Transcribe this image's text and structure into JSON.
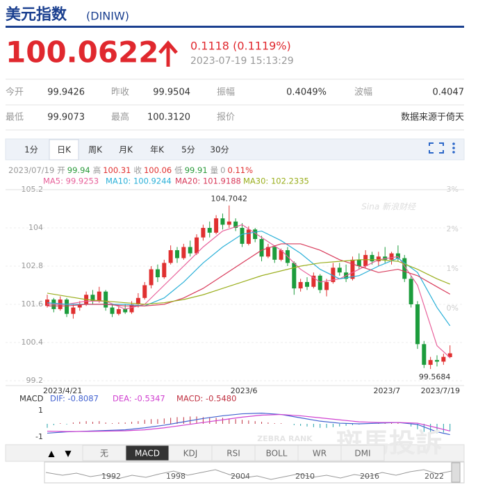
{
  "header": {
    "title": "美元指数",
    "code": "(DINIW)",
    "price": "100.0622",
    "change": "0.1118 (0.1119%)",
    "time": "2023-07-19 15:13:29"
  },
  "table": {
    "rows": [
      [
        "今开",
        "99.9426",
        "昨收",
        "99.9504",
        "振幅",
        "0.4049%",
        "波幅",
        "0.4047"
      ],
      [
        "最低",
        "99.9073",
        "最高",
        "100.3120",
        "报价",
        "",
        "",
        "数据来源于倚天"
      ]
    ]
  },
  "tabs": {
    "items": [
      "1分",
      "日K",
      "周K",
      "月K",
      "年K",
      "5分",
      "30分"
    ],
    "active": 1
  },
  "info": [
    {
      "label": "2023/07/19",
      "value": null,
      "color": "#999"
    },
    {
      "label": "开",
      "value": "99.94",
      "color": "#2a9a3a"
    },
    {
      "label": "高",
      "value": "100.31",
      "color": "#e03030"
    },
    {
      "label": "收",
      "value": "100.06",
      "color": "#e03030"
    },
    {
      "label": "低",
      "value": "99.91",
      "color": "#2a9a3a"
    },
    {
      "label": "量",
      "value": "0",
      "color": "#999"
    },
    {
      "label": null,
      "value": "0.11%",
      "color": "#e03030"
    }
  ],
  "chart": {
    "type": "candlestick",
    "ylim": [
      99.2,
      105.2
    ],
    "yticks": [
      {
        "value": 105.2,
        "label": "105.2"
      },
      104,
      {
        "value": 102.8,
        "label": "102.8"
      },
      {
        "value": 101.6,
        "label": "101.6"
      },
      {
        "value": 100.4,
        "label": "100.4"
      },
      {
        "value": 99.2,
        "label": "99.2"
      }
    ],
    "y2lim": [
      -1.82,
      3
    ],
    "y2ticks": [
      {
        "value": 3,
        "label": "3%"
      },
      {
        "value": 2,
        "label": "2%"
      },
      {
        "value": 1,
        "label": "1%"
      },
      {
        "value": 0,
        "label": "0%"
      }
    ],
    "up_color": "#e03030",
    "down_color": "#1c9c3c",
    "watermark": "Sina 新浪财经",
    "xlabels": [
      {
        "index": 0,
        "label": "2023/4/21"
      },
      {
        "index": 29,
        "label": "2023/6"
      },
      {
        "index": 51,
        "label": "2023/7"
      },
      {
        "index": 62,
        "label": "2023/7/19"
      }
    ],
    "high_index": 28,
    "low_index": 59,
    "candles": [
      [
        101.55,
        101.9,
        101.5,
        101.75
      ],
      [
        101.75,
        101.8,
        101.35,
        101.45
      ],
      [
        101.45,
        101.85,
        101.4,
        101.75
      ],
      [
        101.75,
        101.8,
        101.2,
        101.3
      ],
      [
        101.3,
        101.6,
        101.15,
        101.5
      ],
      [
        101.5,
        101.7,
        101.4,
        101.6
      ],
      [
        101.6,
        102.0,
        101.55,
        101.9
      ],
      [
        101.9,
        102.05,
        101.6,
        101.7
      ],
      [
        101.7,
        102.15,
        101.65,
        102.0
      ],
      [
        102.0,
        102.05,
        101.4,
        101.5
      ],
      [
        101.5,
        101.6,
        101.2,
        101.3
      ],
      [
        101.3,
        101.55,
        101.25,
        101.45
      ],
      [
        101.45,
        101.6,
        101.3,
        101.35
      ],
      [
        101.35,
        101.7,
        101.3,
        101.6
      ],
      [
        101.6,
        101.95,
        101.5,
        101.8
      ],
      [
        101.8,
        102.3,
        101.75,
        102.2
      ],
      [
        102.2,
        102.8,
        102.1,
        102.7
      ],
      [
        102.7,
        102.85,
        102.3,
        102.45
      ],
      [
        102.45,
        103.0,
        102.4,
        102.9
      ],
      [
        102.9,
        103.45,
        102.85,
        103.3
      ],
      [
        103.3,
        103.4,
        102.9,
        103.05
      ],
      [
        103.05,
        103.5,
        103.0,
        103.4
      ],
      [
        103.4,
        103.6,
        103.1,
        103.2
      ],
      [
        103.2,
        103.8,
        103.15,
        103.7
      ],
      [
        103.7,
        104.1,
        103.6,
        104.0
      ],
      [
        104.0,
        104.2,
        103.7,
        103.85
      ],
      [
        103.85,
        104.4,
        103.8,
        104.3
      ],
      [
        104.3,
        104.45,
        103.95,
        104.1
      ],
      [
        104.1,
        104.7042,
        104.0,
        104.2
      ],
      [
        104.2,
        104.3,
        103.9,
        104.0
      ],
      [
        104.0,
        104.15,
        103.4,
        103.5
      ],
      [
        103.5,
        104.05,
        103.45,
        103.95
      ],
      [
        103.95,
        104.0,
        103.55,
        103.65
      ],
      [
        103.65,
        103.75,
        102.95,
        103.1
      ],
      [
        103.1,
        103.5,
        103.05,
        103.4
      ],
      [
        103.4,
        103.45,
        102.9,
        103.0
      ],
      [
        103.0,
        103.35,
        102.95,
        103.3
      ],
      [
        103.3,
        103.4,
        102.8,
        102.9
      ],
      [
        102.9,
        102.95,
        101.9,
        102.1
      ],
      [
        102.1,
        102.4,
        102.0,
        102.3
      ],
      [
        102.3,
        102.45,
        102.05,
        102.15
      ],
      [
        102.15,
        102.6,
        102.1,
        102.5
      ],
      [
        102.5,
        102.55,
        101.95,
        102.05
      ],
      [
        102.05,
        102.4,
        101.85,
        102.3
      ],
      [
        102.3,
        102.9,
        102.25,
        102.75
      ],
      [
        102.75,
        102.9,
        102.5,
        102.6
      ],
      [
        102.6,
        102.85,
        102.3,
        102.4
      ],
      [
        102.4,
        103.1,
        102.35,
        103.0
      ],
      [
        103.0,
        103.2,
        102.7,
        102.8
      ],
      [
        102.8,
        103.3,
        102.75,
        103.15
      ],
      [
        103.15,
        103.25,
        102.85,
        102.95
      ],
      [
        102.95,
        103.25,
        102.8,
        103.1
      ],
      [
        103.1,
        103.4,
        102.9,
        103.0
      ],
      [
        103.0,
        103.25,
        102.85,
        103.2
      ],
      [
        103.2,
        103.45,
        102.95,
        103.05
      ],
      [
        103.05,
        103.15,
        102.3,
        102.4
      ],
      [
        102.4,
        102.5,
        101.5,
        101.6
      ],
      [
        101.6,
        101.7,
        100.2,
        100.35
      ],
      [
        100.35,
        100.45,
        99.6,
        99.7
      ],
      [
        99.7,
        99.95,
        99.5684,
        99.85
      ],
      [
        99.85,
        100.0,
        99.65,
        99.8
      ],
      [
        99.8,
        100.05,
        99.7,
        99.95
      ],
      [
        99.9426,
        100.312,
        99.9073,
        100.0622
      ]
    ],
    "ma_x": [
      0,
      3,
      6,
      9,
      12,
      15,
      18,
      21,
      24,
      27,
      30,
      33,
      36,
      39,
      42,
      45,
      48,
      51,
      54,
      57,
      60,
      62
    ],
    "series": [
      {
        "name": "MA5",
        "label": "MA5: 99.9253",
        "color": "#e8609a",
        "values": [
          101.6,
          101.6,
          101.7,
          101.7,
          101.45,
          101.6,
          102.2,
          102.8,
          103.4,
          103.9,
          104.1,
          103.7,
          103.3,
          102.7,
          102.3,
          102.4,
          102.7,
          103.0,
          103.1,
          102.2,
          100.3,
          99.9253
        ]
      },
      {
        "name": "MA10",
        "label": "MA10: 100.9244",
        "color": "#2ab0d8",
        "values": [
          101.65,
          101.6,
          101.6,
          101.6,
          101.6,
          101.55,
          101.8,
          102.3,
          102.9,
          103.4,
          103.8,
          103.9,
          103.6,
          103.2,
          102.7,
          102.4,
          102.5,
          102.8,
          103.05,
          102.6,
          101.5,
          100.9244
        ]
      },
      {
        "name": "MA20",
        "label": "MA20: 101.9188",
        "color": "#d83a5a",
        "values": [
          101.55,
          101.55,
          101.6,
          101.6,
          101.55,
          101.55,
          101.6,
          101.8,
          102.1,
          102.5,
          102.9,
          103.3,
          103.5,
          103.5,
          103.3,
          103.0,
          102.8,
          102.6,
          102.7,
          102.5,
          102.15,
          101.9188
        ]
      },
      {
        "name": "MA30",
        "label": "MA30: 102.2335",
        "color": "#9aae1c",
        "values": [
          101.95,
          101.85,
          101.75,
          101.7,
          101.65,
          101.6,
          101.65,
          101.75,
          101.9,
          102.1,
          102.3,
          102.5,
          102.65,
          102.8,
          102.9,
          102.95,
          103.0,
          103.0,
          102.95,
          102.7,
          102.4,
          102.2335
        ]
      }
    ]
  },
  "macd": {
    "title": "MACD",
    "ylim": [
      -1.56,
      1.56
    ],
    "yticks": [
      1,
      -1
    ],
    "hist": [
      -0.3,
      -0.1,
      0.05,
      -0.05,
      0.1,
      0.15,
      0.2,
      0.15,
      0.2,
      0.1,
      0.05,
      0.1,
      0.1,
      0.15,
      0.2,
      0.3,
      0.35,
      0.35,
      0.4,
      0.45,
      0.5,
      0.5,
      0.55,
      0.55,
      0.5,
      0.5,
      0.45,
      0.45,
      0.4,
      0.35,
      0.3,
      0.25,
      0.2,
      0.15,
      0.1,
      0.05,
      0.05,
      0.0,
      -0.1,
      -0.15,
      -0.2,
      -0.25,
      -0.3,
      -0.3,
      -0.25,
      -0.2,
      -0.15,
      -0.1,
      -0.05,
      0.0,
      0.05,
      0.05,
      0.05,
      0.1,
      0.1,
      0.0,
      -0.2,
      -0.4,
      -0.6,
      -0.7,
      -0.7,
      -0.65,
      -0.548
    ],
    "series": [
      {
        "name": "DIF",
        "label": "DIF: -0.8087",
        "color": "#4060d0",
        "values": [
          -0.7,
          -0.6,
          -0.55,
          -0.5,
          -0.45,
          -0.3,
          -0.1,
          0.15,
          0.4,
          0.6,
          0.75,
          0.8,
          0.7,
          0.45,
          0.2,
          0.05,
          0.0,
          0.05,
          0.1,
          -0.05,
          -0.6,
          -0.8087
        ]
      },
      {
        "name": "DEA",
        "label": "DEA: -0.5347",
        "color": "#d040d0",
        "values": [
          -0.55,
          -0.58,
          -0.57,
          -0.55,
          -0.52,
          -0.45,
          -0.3,
          -0.1,
          0.1,
          0.3,
          0.5,
          0.65,
          0.7,
          0.6,
          0.45,
          0.3,
          0.15,
          0.1,
          0.1,
          0.05,
          -0.3,
          -0.5347
        ]
      }
    ],
    "hist_label": "MACD: -0.5480",
    "up_color": "#c03040",
    "down_color": "#20a0a8"
  },
  "toolbar": {
    "arrows": [
      "▲",
      "▼"
    ],
    "items": [
      "无",
      "MACD",
      "KDJ",
      "RSI",
      "BOLL",
      "WR",
      "DMI"
    ],
    "active": 1
  },
  "navigator": {
    "years": [
      "1992",
      "1998",
      "2004",
      "2010",
      "2016",
      "2022"
    ]
  },
  "watermark": {
    "brand": "ZEBRA RANK",
    "name": "斑馬投訴"
  }
}
